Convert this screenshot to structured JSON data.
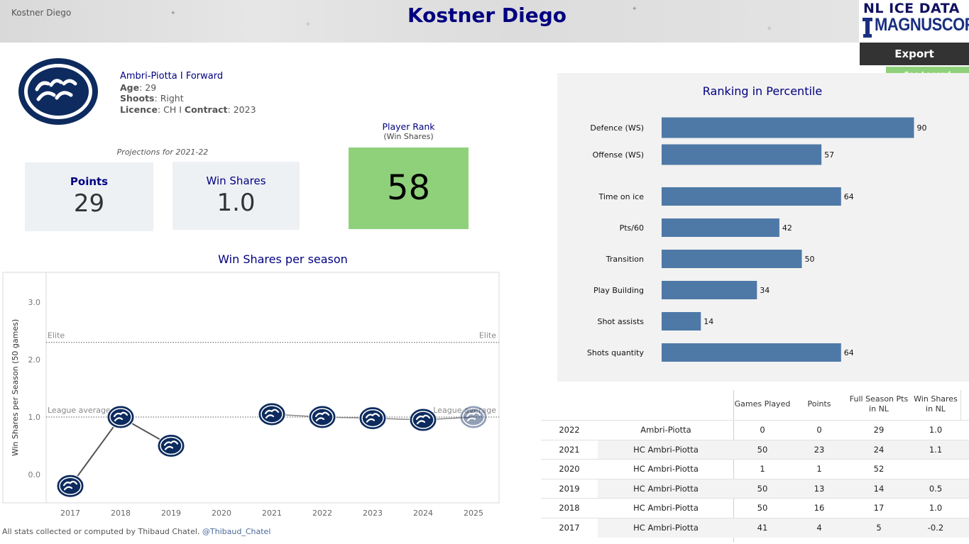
{
  "banner": {
    "left_label": "Kostner Diego",
    "title": "Kostner Diego"
  },
  "brand": {
    "line1": "NL ICE DATA",
    "line2": "MAGNUSCORSI"
  },
  "buttons": {
    "export_label": "Export",
    "legend_label": "See Legend"
  },
  "player": {
    "team_position": "Ambri-Piotta  I  Forward",
    "age_label": "Age",
    "age": "29",
    "shoots_label": "Shoots",
    "shoots": "Right",
    "licence_label": "Licence",
    "licence": "CH",
    "contract_label": "Contract",
    "contract": "2023"
  },
  "projections": {
    "label": "Projections for 2021-22",
    "points_label": "Points",
    "points_value": "29",
    "ws_label": "Win Shares",
    "ws_value": "1.0"
  },
  "rank": {
    "label": "Player Rank",
    "sublabel": "(Win Shares)",
    "value": "58"
  },
  "win_shares_chart": {
    "type": "line",
    "title": "Win Shares per season",
    "ylabel": "Win Shares per Season (50 games)",
    "ylim": [
      -0.5,
      3.5
    ],
    "yticks": [
      "3.0",
      "2.0",
      "1.0",
      "0.0"
    ],
    "ytick_values": [
      3.0,
      2.0,
      1.0,
      0.0
    ],
    "x": [
      "2017",
      "2018",
      "2019",
      "2020",
      "2021",
      "2022",
      "2023",
      "2024",
      "2025"
    ],
    "series": [
      {
        "name": "actual",
        "years": [
          "2017",
          "2018",
          "2019"
        ],
        "values": [
          -0.2,
          1.0,
          0.5
        ]
      },
      {
        "name": "projection",
        "years": [
          "2021",
          "2022",
          "2023",
          "2024",
          "2025"
        ],
        "values": [
          1.05,
          1.0,
          0.98,
          0.95,
          1.0
        ]
      }
    ],
    "reference_lines": [
      {
        "name": "Elite",
        "value": 2.3,
        "label_left": "Elite",
        "label_right": "Elite"
      },
      {
        "name": "League average",
        "value": 1.0,
        "label_left": "League average",
        "label_right": "League average"
      }
    ]
  },
  "chart_data": {
    "type": "bar",
    "title": "Ranking in Percentile",
    "categories": [
      "Defence (WS)",
      "Offense (WS)",
      "Time on ice",
      "Pts/60",
      "Transition",
      "Play Building",
      "Shot assists",
      "Shots quantity"
    ],
    "values": [
      90,
      57,
      64,
      42,
      50,
      34,
      14,
      64
    ],
    "xlim": [
      0,
      100
    ],
    "color": "#4e79a7"
  },
  "table": {
    "headers": [
      "Games Played",
      "Points",
      "Full Season Pts in NL",
      "Win Shares in NL"
    ],
    "rows": [
      {
        "season": "2022",
        "team": "Ambri-Piotta",
        "gp": "0",
        "pts": "0",
        "full": "29",
        "ws": "1.0"
      },
      {
        "season": "2021",
        "team": "HC Ambri-Piotta",
        "gp": "50",
        "pts": "23",
        "full": "24",
        "ws": "1.1"
      },
      {
        "season": "2020",
        "team": "HC Ambri-Piotta",
        "gp": "1",
        "pts": "1",
        "full": "52",
        "ws": ""
      },
      {
        "season": "2019",
        "team": "HC Ambri-Piotta",
        "gp": "50",
        "pts": "13",
        "full": "14",
        "ws": "0.5"
      },
      {
        "season": "2018",
        "team": "HC Ambri-Piotta",
        "gp": "50",
        "pts": "16",
        "full": "17",
        "ws": "1.0"
      },
      {
        "season": "2017",
        "team": "HC Ambri-Piotta",
        "gp": "41",
        "pts": "4",
        "full": "5",
        "ws": "-0.2"
      }
    ]
  },
  "footer": {
    "credit": "All stats collected or computed by Thibaud Chatel.",
    "handle": "@Thibaud_Chatel"
  },
  "colors": {
    "navy": "#000080",
    "bar": "#4e79a7",
    "rank_green": "#8fd17a",
    "card_bg": "#eef1f4",
    "panel_bg": "#f2f2f2",
    "puck": "#0d2b5e"
  }
}
